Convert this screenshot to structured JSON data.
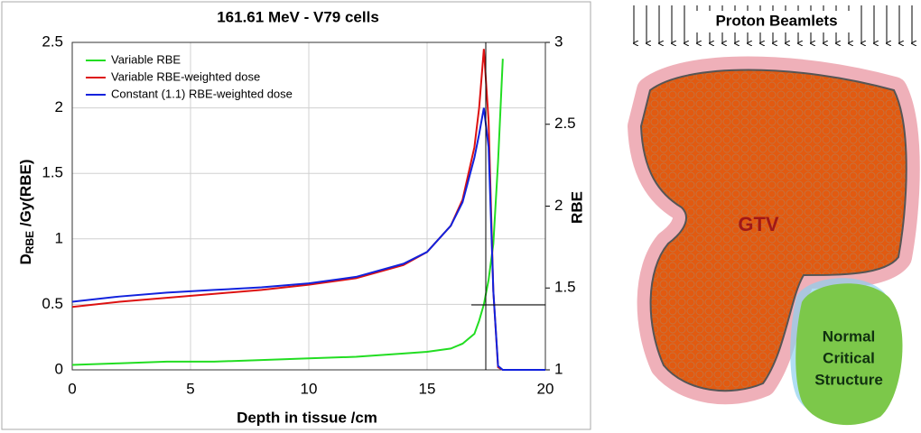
{
  "chart_data": {
    "type": "line",
    "title": "161.61 MeV - V79 cells",
    "xlabel": "Depth in tissue /cm",
    "ylabel": {
      "base": "D",
      "subscript": "RBE",
      "rest": " /Gy(RBE)"
    },
    "y2label": "RBE",
    "x": [
      0,
      2,
      4,
      6,
      8,
      10,
      12,
      14,
      15,
      16,
      16.5,
      17,
      17.2,
      17.4,
      17.6,
      17.8,
      18,
      18.2,
      19,
      20
    ],
    "series": [
      {
        "name": "Variable RBE",
        "color": "#22dd22",
        "axis": "y2",
        "values": [
          1.03,
          1.04,
          1.05,
          1.05,
          1.06,
          1.07,
          1.08,
          1.1,
          1.11,
          1.13,
          1.16,
          1.22,
          1.3,
          1.4,
          1.55,
          1.77,
          2.27,
          2.9,
          null,
          null
        ]
      },
      {
        "name": "Variable RBE-weighted dose",
        "color": "#dd1111",
        "values": [
          0.48,
          0.52,
          0.55,
          0.58,
          0.61,
          0.65,
          0.7,
          0.8,
          0.9,
          1.1,
          1.3,
          1.7,
          2.0,
          2.45,
          1.9,
          0.6,
          0.02,
          0,
          0,
          0
        ]
      },
      {
        "name": "Constant (1.1) RBE-weighted dose",
        "color": "#1122dd",
        "values": [
          0.52,
          0.56,
          0.59,
          0.61,
          0.63,
          0.66,
          0.71,
          0.81,
          0.9,
          1.1,
          1.28,
          1.62,
          1.8,
          2.0,
          1.7,
          0.6,
          0.03,
          0,
          0,
          0
        ]
      }
    ],
    "xlim": [
      0,
      20
    ],
    "xticks": [
      0,
      5,
      10,
      15,
      20
    ],
    "ylim": [
      0,
      2.5
    ],
    "yticks": [
      0,
      0.5,
      1,
      1.5,
      2,
      2.5
    ],
    "y2lim": [
      1,
      3
    ],
    "y2ticks": [
      1,
      1.5,
      2,
      2.5,
      3
    ],
    "grid": true,
    "legend": "upper left"
  },
  "diagram": {
    "title": "Proton Beamlets",
    "target": "GTV",
    "organ": [
      "Normal",
      "Critical",
      "Structure"
    ]
  }
}
